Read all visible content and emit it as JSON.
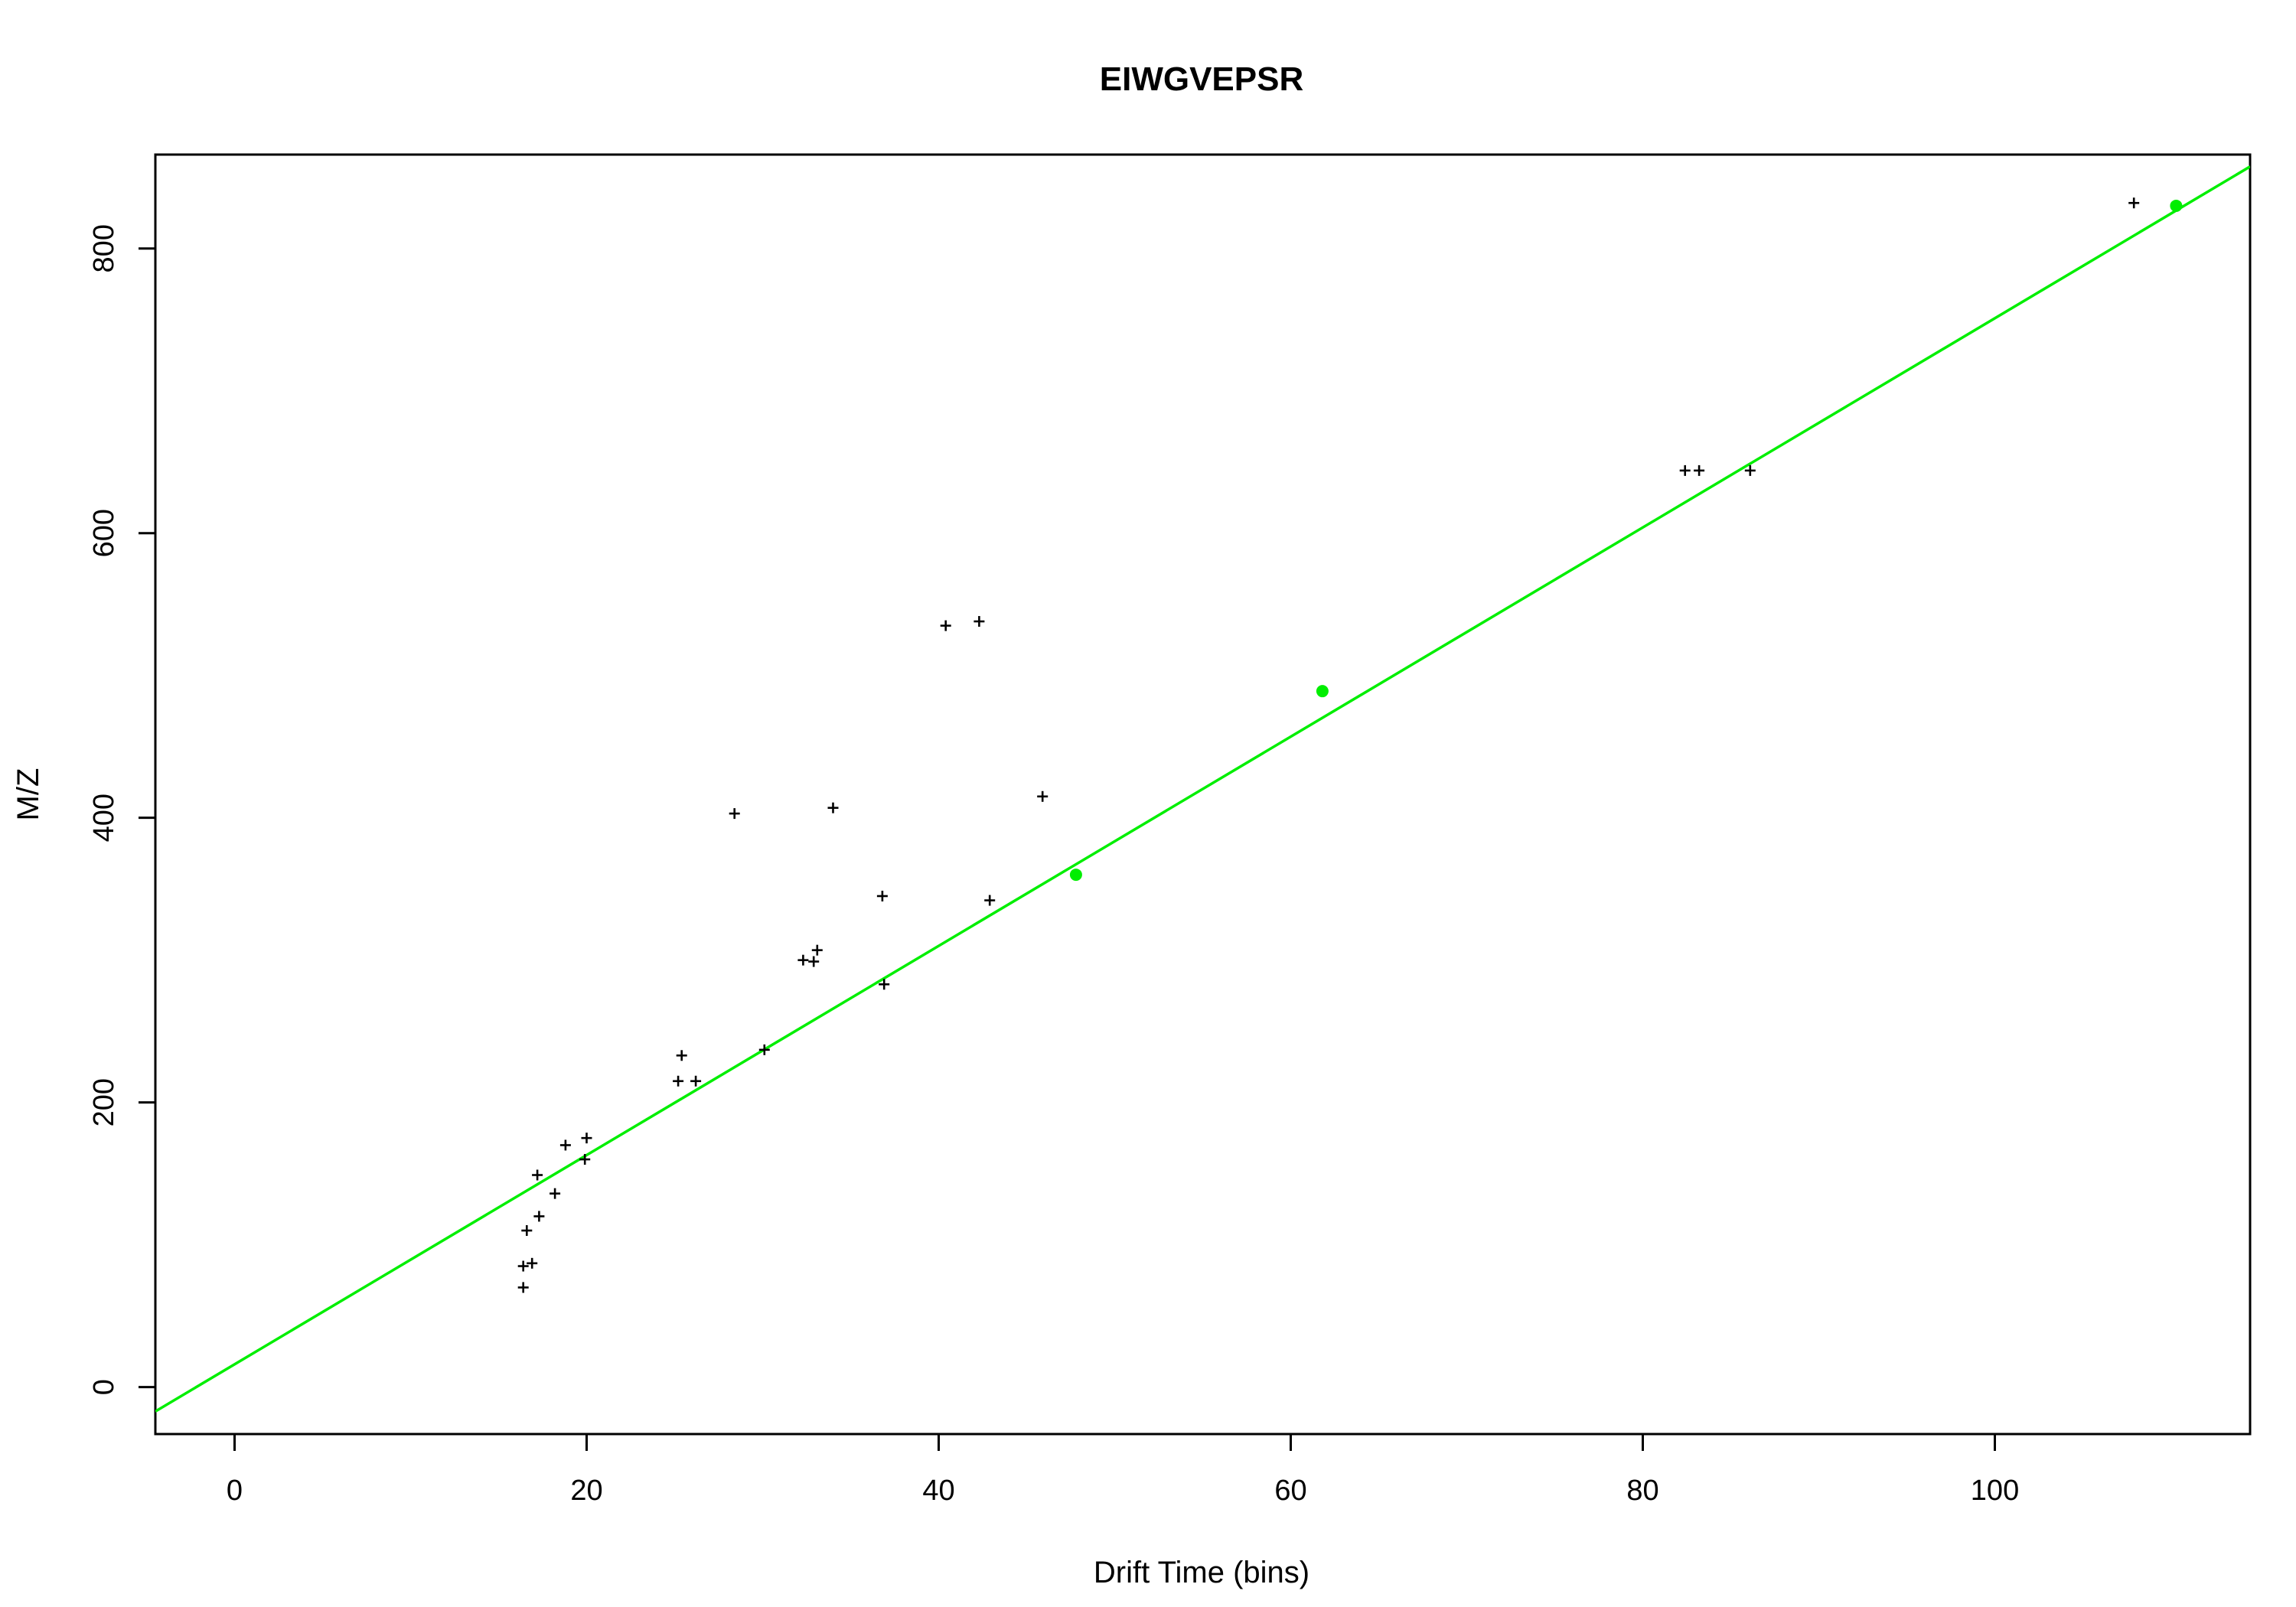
{
  "chart_data": {
    "type": "scatter",
    "title": "EIWGVEPSR",
    "xlabel": "Drift Time (bins)",
    "ylabel": "M/Z",
    "xlim": [
      -4.5,
      114.5
    ],
    "ylim": [
      -33,
      866
    ],
    "x_ticks": [
      0,
      20,
      40,
      60,
      80,
      100
    ],
    "y_ticks": [
      0,
      200,
      400,
      600,
      800
    ],
    "grid": false,
    "colors": {
      "fit": "#00ee00",
      "points": "#000000",
      "highlight": "#00ee00"
    },
    "series": [
      {
        "marker": "plus",
        "points": [
          [
            16.4,
            70
          ],
          [
            16.4,
            85
          ],
          [
            16.9,
            87
          ],
          [
            16.6,
            110
          ],
          [
            17.3,
            120
          ],
          [
            17.2,
            149
          ],
          [
            18.2,
            136
          ],
          [
            18.8,
            170
          ],
          [
            19.9,
            160
          ],
          [
            20.0,
            175
          ],
          [
            25.2,
            215
          ],
          [
            25.4,
            233
          ],
          [
            26.2,
            215
          ],
          [
            30.1,
            237
          ],
          [
            28.4,
            403
          ],
          [
            32.3,
            300
          ],
          [
            32.9,
            299
          ],
          [
            33.1,
            307
          ],
          [
            34.0,
            407
          ],
          [
            36.8,
            345
          ],
          [
            36.9,
            283
          ],
          [
            40.4,
            535
          ],
          [
            42.3,
            538
          ],
          [
            42.9,
            342
          ],
          [
            45.9,
            415
          ],
          [
            82.4,
            644
          ],
          [
            83.2,
            644
          ],
          [
            86.1,
            644
          ],
          [
            107.9,
            832
          ]
        ]
      },
      {
        "marker": "dot",
        "points": [
          [
            47.8,
            360
          ],
          [
            61.8,
            489
          ],
          [
            110.3,
            830
          ]
        ]
      },
      {
        "type": "line",
        "intercept": 16,
        "slope": 7.35
      }
    ]
  }
}
